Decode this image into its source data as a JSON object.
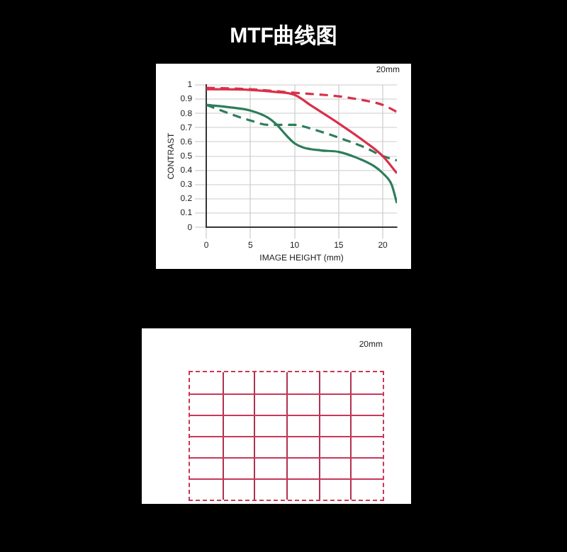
{
  "chart_data": {
    "type": "line",
    "title": "MTF曲线图",
    "xlabel": "IMAGE HEIGHT (mm)",
    "ylabel": "CONTRAST",
    "annotations": [
      "20mm",
      "20mm"
    ],
    "marker": "none",
    "grid": true,
    "xlim": [
      0,
      21.6
    ],
    "xticks": [
      0,
      5,
      10,
      15,
      20
    ],
    "ylim": [
      0,
      1
    ],
    "yticks": [
      0,
      0.1,
      0.2,
      0.3,
      0.4,
      0.5,
      0.6,
      0.7,
      0.8,
      0.9,
      1
    ],
    "series": [
      {
        "color": "#d9304a",
        "line_style": "solid",
        "x": [
          0,
          5,
          8,
          10,
          12,
          15,
          18,
          20,
          21.6
        ],
        "values": [
          0.97,
          0.965,
          0.95,
          0.93,
          0.85,
          0.73,
          0.6,
          0.5,
          0.38
        ]
      },
      {
        "color": "#d9304a",
        "line_style": "dashed",
        "x": [
          0,
          5,
          10,
          15,
          18,
          20,
          21.6
        ],
        "values": [
          0.98,
          0.97,
          0.945,
          0.92,
          0.89,
          0.86,
          0.81
        ]
      },
      {
        "color": "#2e7d5a",
        "line_style": "solid",
        "x": [
          0,
          3,
          5,
          7,
          8,
          9,
          10,
          11,
          13,
          15,
          17,
          19,
          20,
          21,
          21.6
        ],
        "values": [
          0.86,
          0.84,
          0.82,
          0.77,
          0.72,
          0.65,
          0.59,
          0.56,
          0.54,
          0.53,
          0.49,
          0.43,
          0.38,
          0.3,
          0.17
        ]
      },
      {
        "color": "#2e7d5a",
        "line_style": "dashed",
        "x": [
          0,
          3,
          5,
          7,
          10,
          12,
          15,
          18,
          20,
          21.6
        ],
        "values": [
          0.86,
          0.79,
          0.75,
          0.72,
          0.72,
          0.69,
          0.63,
          0.56,
          0.5,
          0.47
        ]
      }
    ]
  }
}
